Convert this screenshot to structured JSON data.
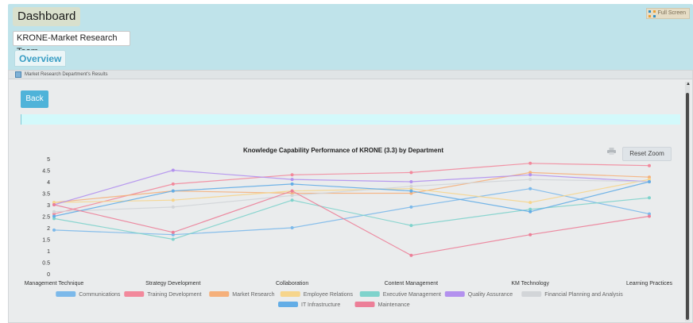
{
  "header": {
    "title": "Dashboard",
    "fullscreen_label": "Full Screen",
    "team_select": "KRONE-Market Research Team",
    "tab_overview": "Overview"
  },
  "panel": {
    "title": "Market Research Department's Results",
    "back_label": "Back",
    "reset_zoom_label": "Reset Zoom"
  },
  "colors": {
    "accent": "#4fb3d9",
    "header_band": "#bfe3ea",
    "panel_bg": "#eaeced"
  },
  "chart_data": {
    "type": "line",
    "title": "Knowledge Capability Performance of KRONE (3.3) by Department",
    "xlabel": "",
    "ylabel": "",
    "categories": [
      "Management Technique",
      "Strategy Development",
      "Collaboration",
      "Content Management",
      "KM Technology",
      "Learning Practices"
    ],
    "ylim": [
      0,
      5
    ],
    "yticks": [
      0,
      0.5,
      1,
      1.5,
      2,
      2.5,
      3,
      3.5,
      4,
      4.5,
      5
    ],
    "grid": false,
    "legend": "bottom",
    "series": [
      {
        "name": "Communications",
        "color": "#7cb9ea",
        "values": [
          1.9,
          1.7,
          2.0,
          2.9,
          3.7,
          2.6
        ]
      },
      {
        "name": "Training Development",
        "color": "#f2899c",
        "values": [
          2.6,
          3.9,
          4.3,
          4.4,
          4.8,
          4.7
        ]
      },
      {
        "name": "Market Research",
        "color": "#f5b07b",
        "values": [
          3.1,
          3.6,
          3.5,
          3.5,
          4.4,
          4.2
        ]
      },
      {
        "name": "Employee Relations",
        "color": "#f6d58c",
        "values": [
          3.1,
          3.2,
          3.6,
          3.7,
          3.1,
          4.1
        ]
      },
      {
        "name": "Executive Management",
        "color": "#7fd3cc",
        "values": [
          2.4,
          1.5,
          3.2,
          2.1,
          2.8,
          3.3
        ]
      },
      {
        "name": "Quality Assurance",
        "color": "#b391ee",
        "values": [
          3.0,
          4.5,
          4.1,
          4.0,
          4.3,
          4.0
        ]
      },
      {
        "name": "Financial Planning and Analysis",
        "color": "#d2d5d8",
        "values": [
          2.7,
          2.9,
          3.4,
          3.8,
          4.1,
          4.0
        ]
      },
      {
        "name": "IT Infrastructure",
        "color": "#63ade6",
        "values": [
          2.5,
          3.6,
          3.9,
          3.6,
          2.7,
          4.0
        ]
      },
      {
        "name": "Maintenance",
        "color": "#ec7f98",
        "values": [
          3.0,
          1.8,
          3.6,
          0.8,
          1.7,
          2.5
        ]
      }
    ]
  }
}
